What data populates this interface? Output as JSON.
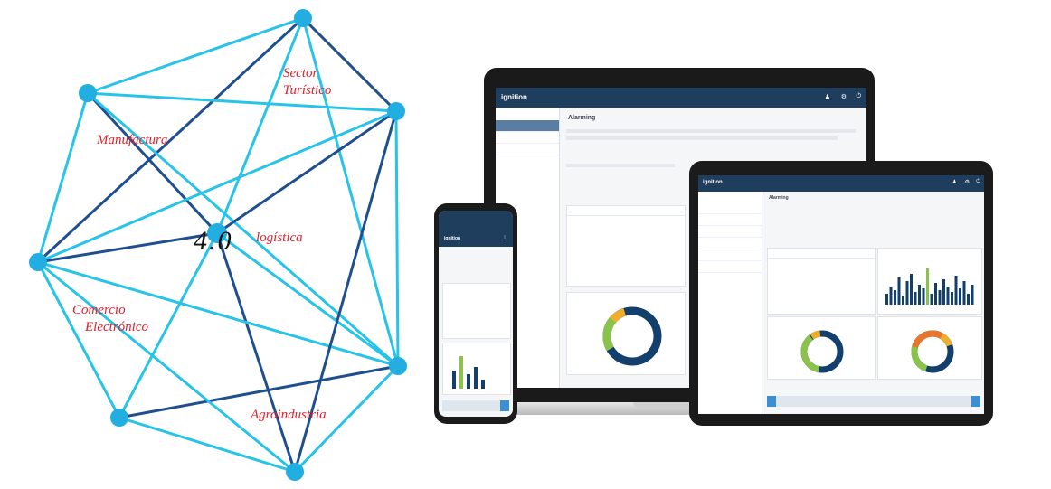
{
  "diagram": {
    "center_label": "4.0",
    "nodes": [
      {
        "id": "manufactura",
        "label": "Manufactura"
      },
      {
        "id": "sector-turistico",
        "label": "Sector\nTurístico"
      },
      {
        "id": "logistica",
        "label": "logística"
      },
      {
        "id": "comercio-electronico",
        "label": "Comercio\nElectrónico"
      },
      {
        "id": "agroindustria",
        "label": "Agroindustria"
      }
    ]
  },
  "colors": {
    "line_dark": "#1f4f8f",
    "line_light": "#27c3e8",
    "node": "#22aee0",
    "label": "#e0202a",
    "appbar": "#1f3d5c"
  },
  "devices": {
    "laptop": {
      "brand": "ignition",
      "page_title": "Alarming"
    },
    "tablet": {
      "brand": "ignition",
      "page_title": "Alarming"
    },
    "phone": {
      "brand": "ignition"
    }
  }
}
